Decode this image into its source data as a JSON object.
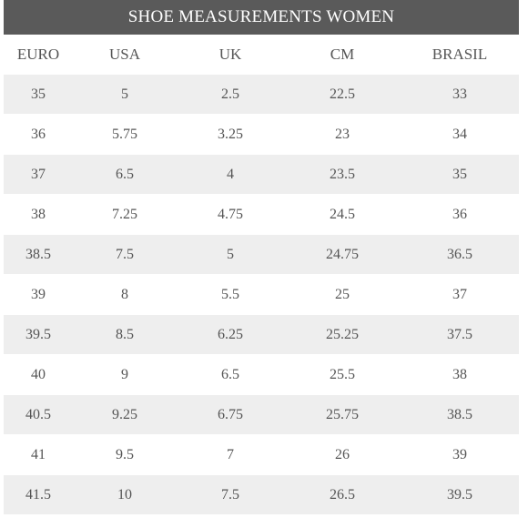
{
  "title": "SHOE MEASUREMENTS WOMEN",
  "columns": [
    "EURO",
    "USA",
    "UK",
    "CM",
    "BRASIL"
  ],
  "rows": [
    [
      "35",
      "5",
      "2.5",
      "22.5",
      "33"
    ],
    [
      "36",
      "5.75",
      "3.25",
      "23",
      "34"
    ],
    [
      "37",
      "6.5",
      "4",
      "23.5",
      "35"
    ],
    [
      "38",
      "7.25",
      "4.75",
      "24.5",
      "36"
    ],
    [
      "38.5",
      "7.5",
      "5",
      "24.75",
      "36.5"
    ],
    [
      "39",
      "8",
      "5.5",
      "25",
      "37"
    ],
    [
      "39.5",
      "8.5",
      "6.25",
      "25.25",
      "37.5"
    ],
    [
      "40",
      "9",
      "6.5",
      "25.5",
      "38"
    ],
    [
      "40.5",
      "9.25",
      "6.75",
      "25.75",
      "38.5"
    ],
    [
      "41",
      "9.5",
      "7",
      "26",
      "39"
    ],
    [
      "41.5",
      "10",
      "7.5",
      "26.5",
      "39.5"
    ]
  ],
  "colors": {
    "title_background": "#5a5a5a",
    "title_text": "#ffffff",
    "shaded_row": "#eeeeee",
    "text": "#555555"
  }
}
